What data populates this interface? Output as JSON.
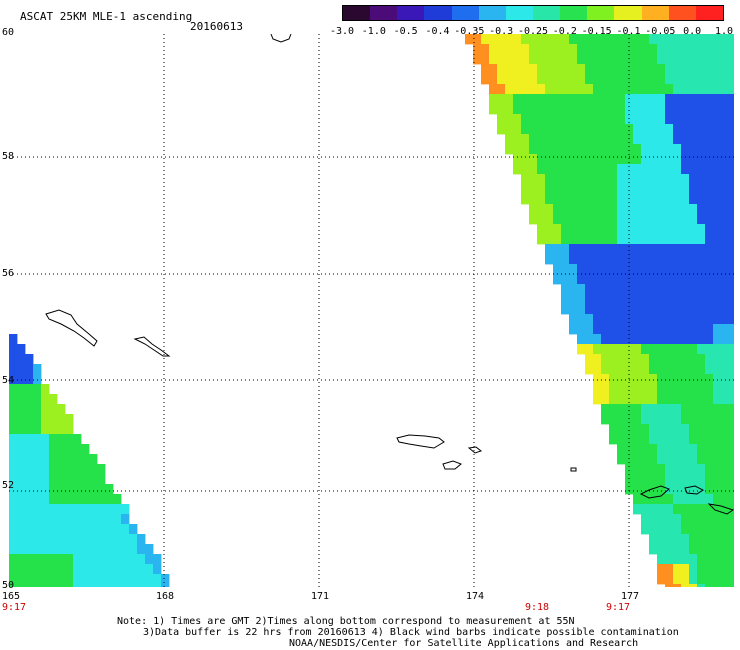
{
  "header": {
    "title": "ASCAT 25KM MLE-1 ascending",
    "date": "20160613"
  },
  "colorbar": {
    "labels": [
      "-3.0",
      "-1.0",
      "-0.5",
      "-0.4",
      "-0.35",
      "-0.3",
      "-0.25",
      "-0.2",
      "-0.15",
      "-0.1",
      "-0.05",
      "0.0",
      "1.0"
    ],
    "colors": [
      "#2a0830",
      "#4b0c7a",
      "#3a18b8",
      "#1f3cd8",
      "#1f6ef0",
      "#2ab4f0",
      "#2ce8e8",
      "#27e6a8",
      "#28e250",
      "#7ff020",
      "#e6f020",
      "#ffb020",
      "#ff5020",
      "#ff2020"
    ]
  },
  "map": {
    "lat_labels": [
      "60",
      "58",
      "56",
      "54",
      "52",
      "50"
    ],
    "lon_labels": [
      "165",
      "168",
      "171",
      "174",
      "177"
    ],
    "time_labels": [
      "9:17",
      "9:18",
      "9:17"
    ],
    "palette": {
      "blue": "#1f50e8",
      "lightblue": "#2ab4f0",
      "cyan": "#2de8e8",
      "aqua": "#28e6b0",
      "green": "#26e24a",
      "lime": "#9cf020",
      "yellow": "#f0f020",
      "orange": "#ff9020",
      "coast": "#000000"
    }
  },
  "notes": {
    "line1": "Note: 1) Times are GMT 2)Times along bottom correspond to measurement at 55N",
    "line2": "3)Data buffer is 22 hrs from 20160613 4) Black wind barbs indicate possible contamination",
    "line3": "NOAA/NESDIS/Center for Satellite Applications and Research"
  }
}
